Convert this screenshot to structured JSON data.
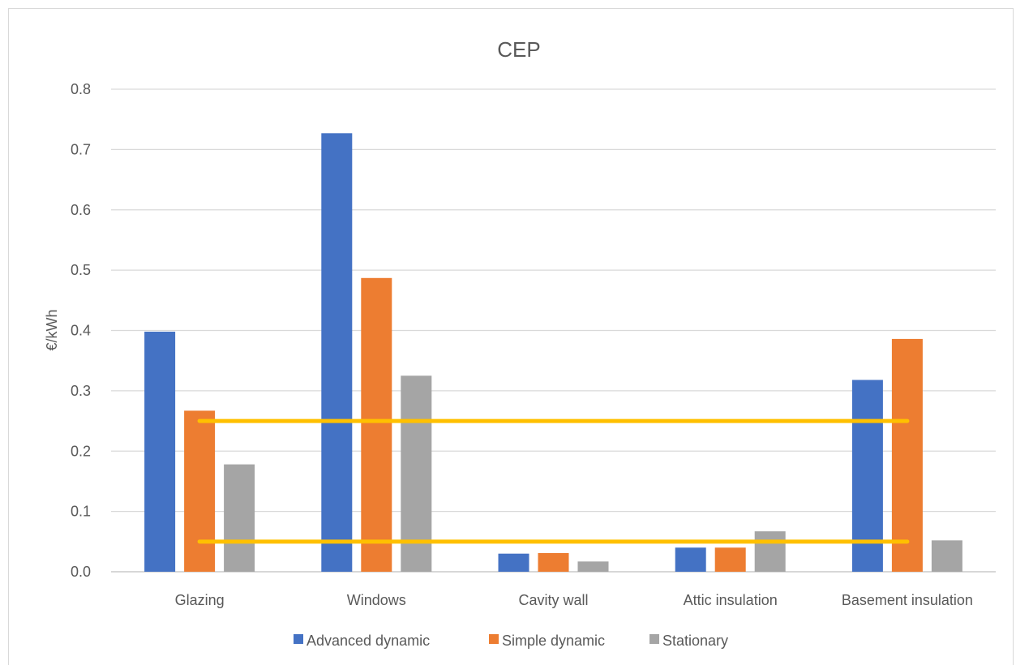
{
  "chart_data": {
    "type": "bar",
    "title": "CEP",
    "xlabel": "",
    "ylabel": "€/kWh",
    "ylim": [
      0,
      0.8
    ],
    "yticks": [
      "0.0",
      "0.1",
      "0.2",
      "0.3",
      "0.4",
      "0.5",
      "0.6",
      "0.7",
      "0.8"
    ],
    "grid": true,
    "legend_position": "bottom",
    "categories": [
      "Glazing",
      "Windows",
      "Cavity wall",
      "Attic insulation",
      "Basement insulation"
    ],
    "series": [
      {
        "name": "Advanced dynamic",
        "color": "#4472c4",
        "values": [
          0.398,
          0.727,
          0.03,
          0.04,
          0.318
        ]
      },
      {
        "name": "Simple dynamic",
        "color": "#ed7d31",
        "values": [
          0.267,
          0.487,
          0.031,
          0.04,
          0.386
        ]
      },
      {
        "name": "Stationary",
        "color": "#a5a5a5",
        "values": [
          0.178,
          0.325,
          0.017,
          0.067,
          0.052
        ]
      }
    ],
    "reference_lines": [
      {
        "value": 0.25,
        "color": "#ffc000"
      },
      {
        "value": 0.05,
        "color": "#ffc000"
      }
    ]
  }
}
